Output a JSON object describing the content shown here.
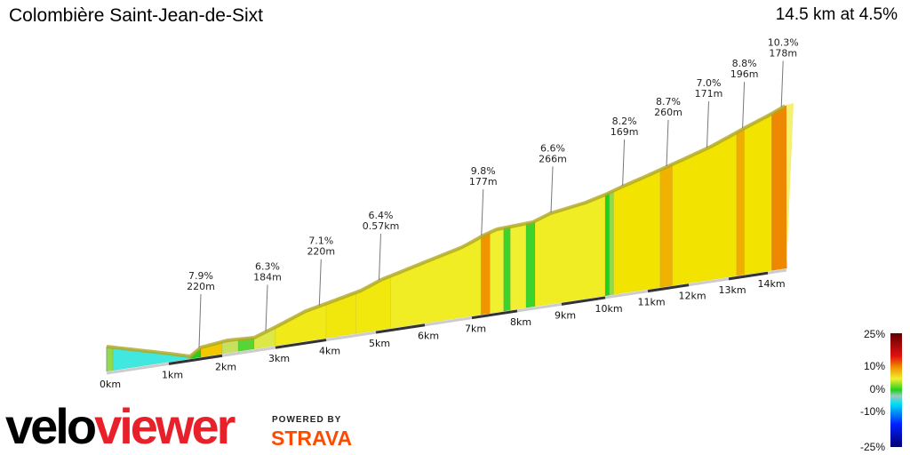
{
  "header": {
    "title": "Colombière Saint-Jean-de-Sixt",
    "summary": "14.5 km at 4.5%"
  },
  "branding": {
    "logo_black": "velo",
    "logo_red": "viewer",
    "powered_by": "POWERED BY",
    "strava": "STRAVA"
  },
  "chart_data": {
    "type": "area",
    "title": "",
    "xlabel": "",
    "x_unit": "km",
    "x_range": [
      0,
      14.5
    ],
    "total_distance_km": 14.5,
    "average_gradient_pct": 4.5,
    "x_ticks": [
      "0km",
      "1km",
      "2km",
      "3km",
      "4km",
      "5km",
      "6km",
      "7km",
      "8km",
      "9km",
      "10km",
      "11km",
      "12km",
      "13km",
      "14km"
    ],
    "segments_gradient_pct": [
      [
        0,
        0.1,
        2
      ],
      [
        0.1,
        1.4,
        -3
      ],
      [
        1.4,
        1.6,
        0
      ],
      [
        1.6,
        2.0,
        7.9
      ],
      [
        2.0,
        2.3,
        3
      ],
      [
        2.3,
        2.6,
        1
      ],
      [
        2.6,
        3.0,
        4
      ],
      [
        3.0,
        4.0,
        6
      ],
      [
        4.0,
        4.6,
        6.5
      ],
      [
        4.6,
        5.3,
        6.4
      ],
      [
        5.3,
        7.2,
        5.5
      ],
      [
        7.2,
        7.4,
        9.8
      ],
      [
        7.4,
        7.7,
        5
      ],
      [
        7.7,
        7.85,
        0.5
      ],
      [
        7.85,
        8.2,
        5
      ],
      [
        8.2,
        8.4,
        0.5
      ],
      [
        8.4,
        10.0,
        5.5
      ],
      [
        10.0,
        10.1,
        0
      ],
      [
        10.1,
        10.2,
        2
      ],
      [
        10.2,
        11.3,
        7
      ],
      [
        11.3,
        11.6,
        8.7
      ],
      [
        11.6,
        13.2,
        7
      ],
      [
        13.2,
        13.4,
        8.8
      ],
      [
        13.4,
        14.1,
        7
      ],
      [
        14.1,
        14.5,
        10.3
      ]
    ],
    "annotations": [
      {
        "km": 1.6,
        "gradient": "7.9%",
        "length": "220m"
      },
      {
        "km": 2.85,
        "gradient": "6.3%",
        "length": "184m"
      },
      {
        "km": 3.9,
        "gradient": "7.1%",
        "length": "220m"
      },
      {
        "km": 5.1,
        "gradient": "6.4%",
        "length": "0.57km"
      },
      {
        "km": 7.25,
        "gradient": "9.8%",
        "length": "177m"
      },
      {
        "km": 8.8,
        "gradient": "6.6%",
        "length": "266m"
      },
      {
        "km": 10.45,
        "gradient": "8.2%",
        "length": "169m"
      },
      {
        "km": 11.5,
        "gradient": "8.7%",
        "length": "260m"
      },
      {
        "km": 12.5,
        "gradient": "7.0%",
        "length": "171m"
      },
      {
        "km": 13.4,
        "gradient": "8.8%",
        "length": "196m"
      },
      {
        "km": 14.4,
        "gradient": "10.3%",
        "length": "178m"
      }
    ],
    "legend": {
      "placement": "bottom-right",
      "labels": [
        "25%",
        "10%",
        "0%",
        "-10%",
        "-25%"
      ],
      "values": [
        25,
        10,
        0,
        -10,
        -25
      ]
    },
    "colors": {
      "-25": "#000070",
      "-15": "#0020ff",
      "-10": "#00e0f0",
      "-3": "#40e8e0",
      "0": "#20d020",
      "3": "#c8e060",
      "5": "#f0f030",
      "7": "#f2e400",
      "9": "#f0a800",
      "10": "#f09000",
      "15": "#e01010",
      "25": "#600000"
    }
  }
}
